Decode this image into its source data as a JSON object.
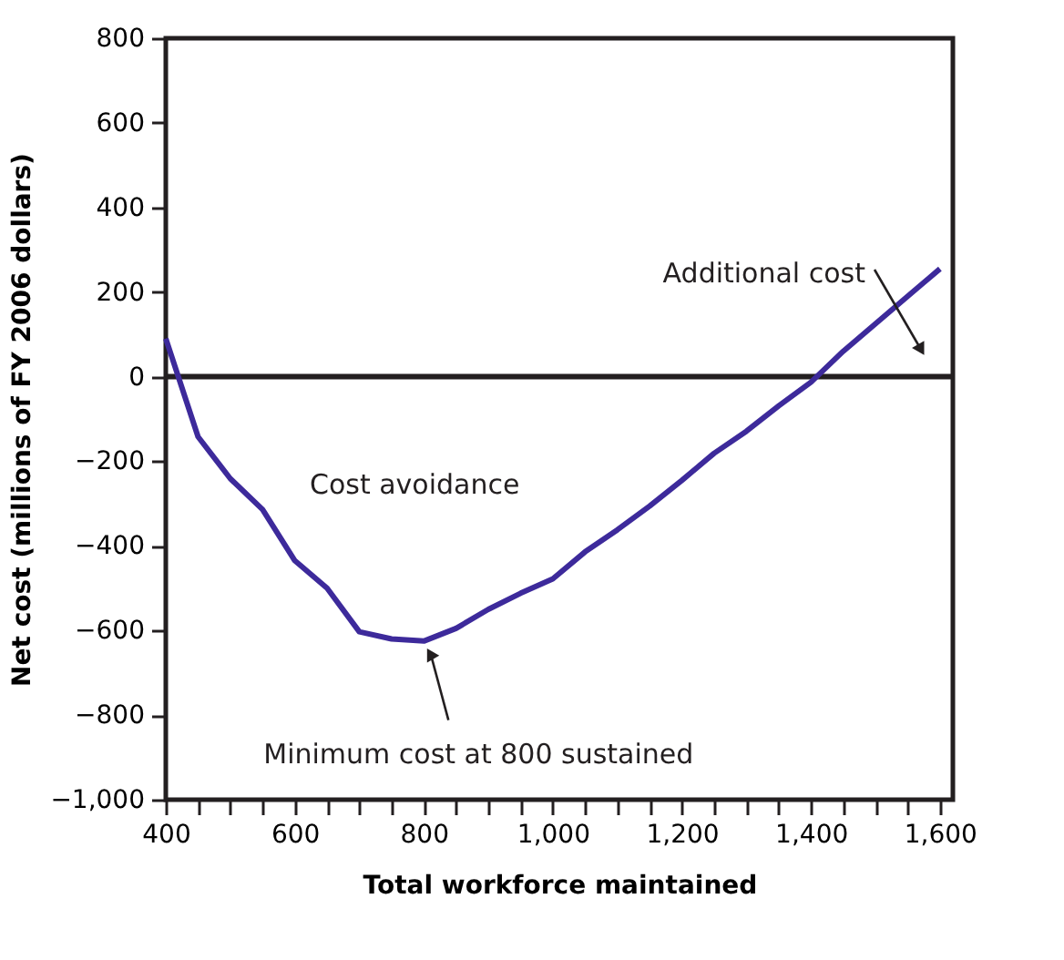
{
  "chart_data": {
    "type": "line",
    "xlabel": "Total workforce maintained",
    "ylabel": "Net cost (millions of FY 2006 dollars)",
    "x": [
      400,
      450,
      500,
      550,
      600,
      650,
      700,
      750,
      800,
      850,
      900,
      950,
      1000,
      1050,
      1100,
      1150,
      1200,
      1250,
      1300,
      1350,
      1400,
      1450,
      1500,
      1550,
      1600
    ],
    "series": [
      {
        "color": "#3d2a9b",
        "values": [
          90,
          -142,
          -241,
          -314,
          -435,
          -500,
          -603,
          -620,
          -625,
          -595,
          -550,
          -512,
          -478,
          -414,
          -362,
          -306,
          -245,
          -181,
          -129,
          -69,
          -13,
          60,
          125,
          190,
          255
        ]
      }
    ],
    "xlim": [
      400,
      1620
    ],
    "ylim": [
      -1000,
      800
    ],
    "xticks": [
      400,
      {
        "value": 450,
        "label": null
      },
      {
        "value": 500,
        "label": null
      },
      {
        "value": 550,
        "label": null
      },
      600,
      {
        "value": 650,
        "label": null
      },
      {
        "value": 700,
        "label": null
      },
      {
        "value": 750,
        "label": null
      },
      800,
      {
        "value": 850,
        "label": null
      },
      {
        "value": 900,
        "label": null
      },
      {
        "value": 950,
        "label": null
      },
      {
        "value": 1000,
        "label": "1,000"
      },
      {
        "value": 1050,
        "label": null
      },
      {
        "value": 1100,
        "label": null
      },
      {
        "value": 1150,
        "label": null
      },
      {
        "value": 1200,
        "label": "1,200"
      },
      {
        "value": 1250,
        "label": null
      },
      {
        "value": 1300,
        "label": null
      },
      {
        "value": 1350,
        "label": null
      },
      {
        "value": 1400,
        "label": "1,400"
      },
      {
        "value": 1450,
        "label": null
      },
      {
        "value": 1500,
        "label": null
      },
      {
        "value": 1550,
        "label": null
      },
      {
        "value": 1600,
        "label": "1,600"
      }
    ],
    "yticks": [
      {
        "value": -1000,
        "label": "−1,000"
      },
      {
        "value": -800,
        "label": "−800"
      },
      {
        "value": -600,
        "label": "−600"
      },
      {
        "value": -400,
        "label": "−400"
      },
      {
        "value": -200,
        "label": "−200"
      },
      0,
      200,
      400,
      600,
      800
    ],
    "ref_lines": [
      {
        "axis": "y",
        "value": 0,
        "label": null,
        "color": "#231f20"
      }
    ],
    "annotations": [
      {
        "text": "Minimum cost at 800 sustained",
        "x": 800,
        "y": -625
      },
      "Additional cost",
      "Cost avoidance"
    ],
    "grid": false,
    "marker": "none",
    "line_style": "solid"
  }
}
